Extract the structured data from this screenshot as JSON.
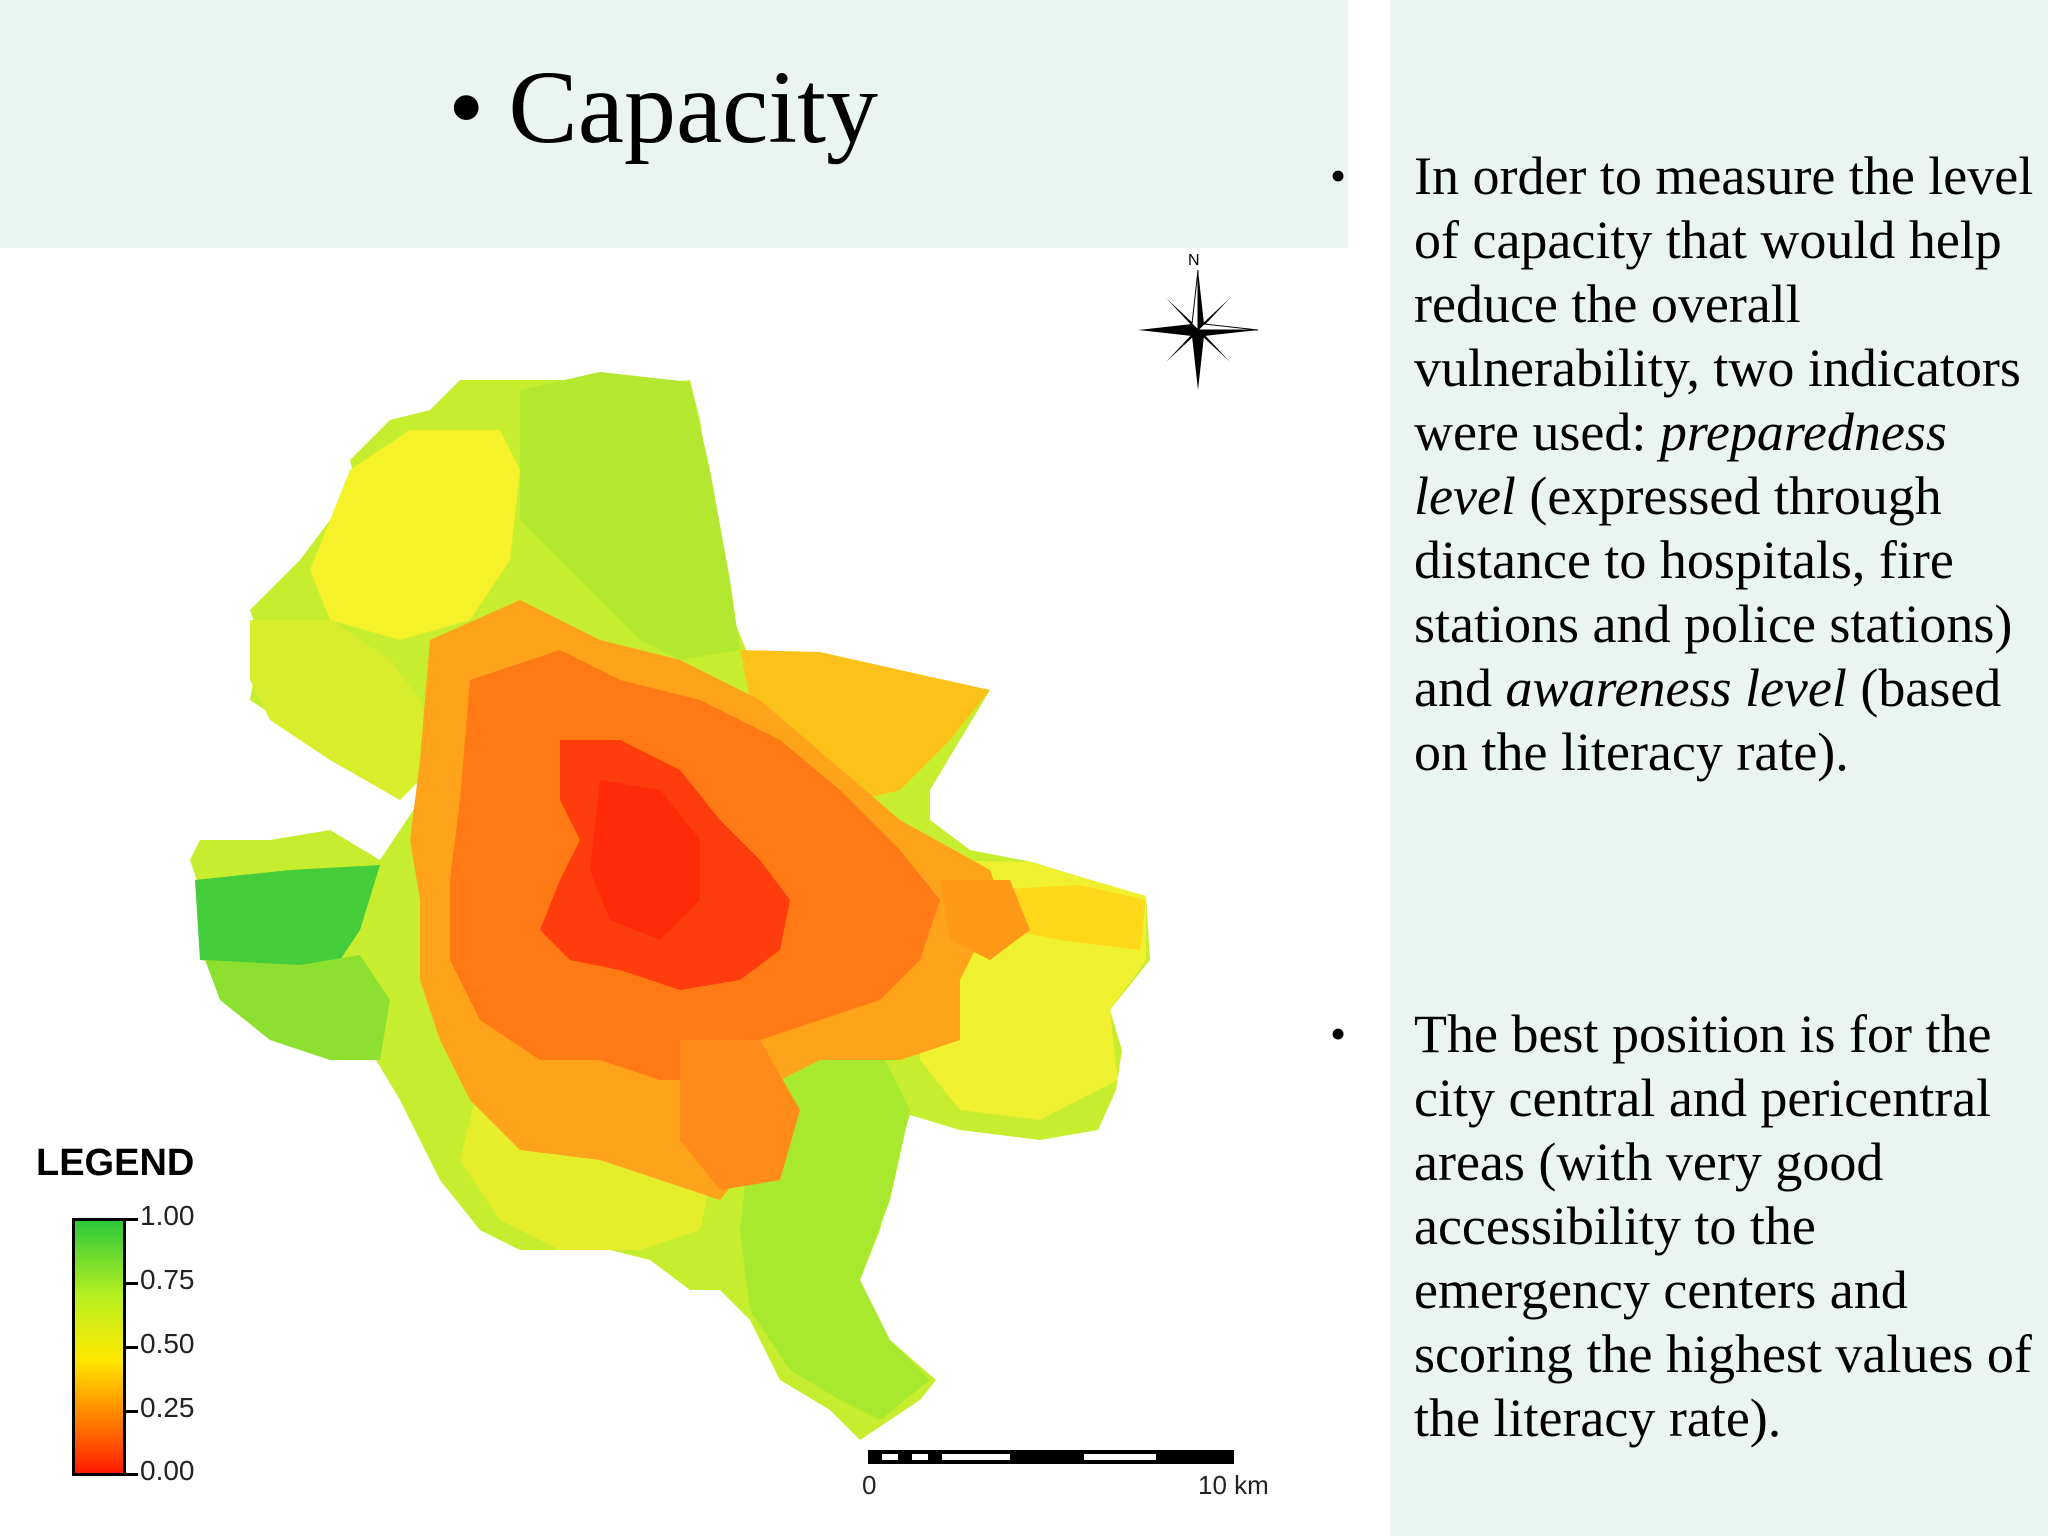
{
  "slide": {
    "title_bullet": "•",
    "title": "Capacity"
  },
  "text_panel": {
    "bullets": [
      {
        "marker": "•",
        "parts": [
          "In order to measure the level of capacity that would help reduce the overall vulnerability, two indicators were used: ",
          "preparedness level",
          " (expressed through distance to hospitals, fire stations and police stations) and ",
          "awareness level",
          " (based on the literacy rate)."
        ]
      },
      {
        "marker": "•",
        "text": "The best position is for the city central and pericentral areas (with very good accessibility to the emergency centers and scoring the highest values of the literacy rate)."
      }
    ]
  },
  "map": {
    "north_label": "N",
    "legend": {
      "title": "LEGEND",
      "labels": [
        "1.00",
        "0.75",
        "0.50",
        "0.25",
        "0.00"
      ],
      "colors": {
        "high": "#2cc83a",
        "mid_high": "#b8f020",
        "mid": "#ffe800",
        "mid_low": "#ff7a00",
        "low": "#ff1a00"
      }
    },
    "scale_bar": {
      "start_label": "0",
      "end_label": "10 km"
    }
  }
}
